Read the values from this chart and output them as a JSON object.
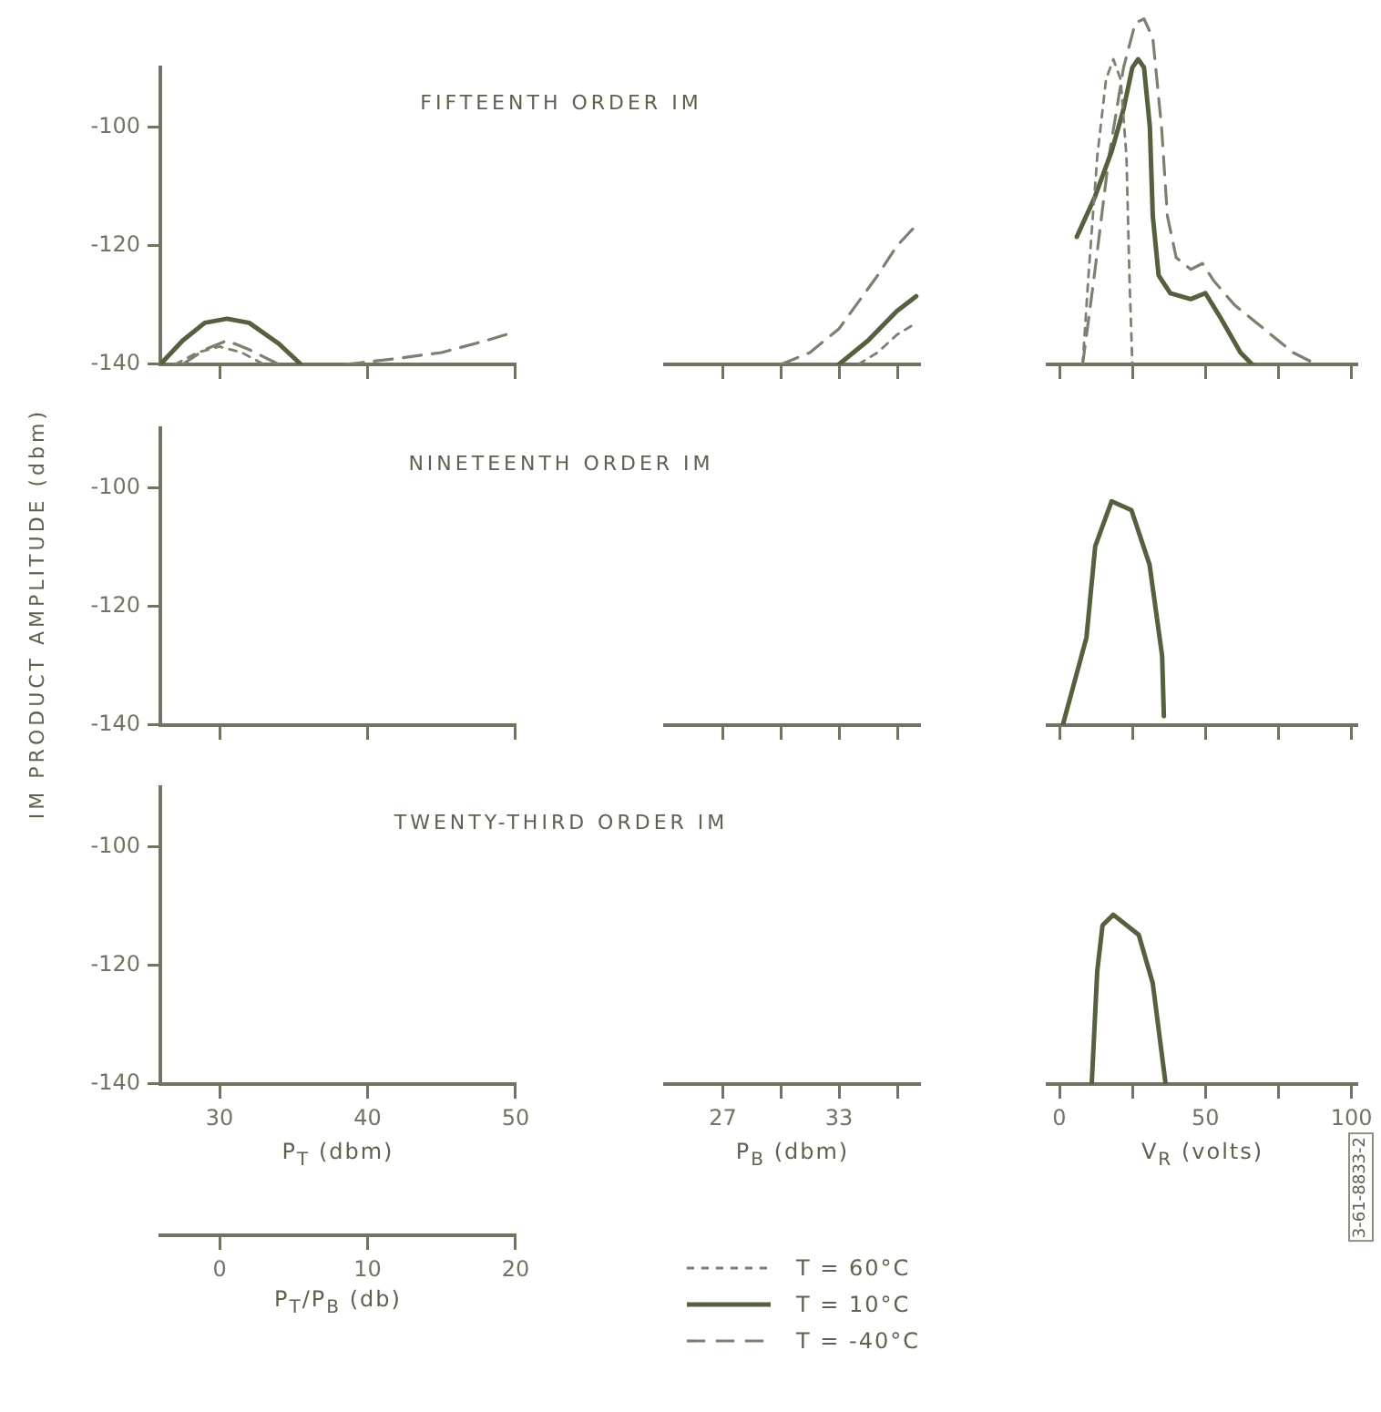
{
  "chart_data": [
    {
      "type": "line",
      "title": "FIFTEENTH ORDER IM",
      "xlim": [
        26,
        50
      ],
      "xticks": [
        30,
        40,
        50
      ],
      "ylim": [
        -140,
        -90
      ],
      "yticks": [
        -140,
        -120,
        -100
      ],
      "tick_labels": "y",
      "marker": "none",
      "legend": "bottom",
      "series": [
        {
          "name": "T = 60°C",
          "color": "#7b806f",
          "line_style": "dotted",
          "x": [
            27,
            28.5,
            30,
            31.5,
            33
          ],
          "values": [
            -140,
            -138,
            -137,
            -138,
            -140
          ]
        },
        {
          "name": "T = 10°C",
          "color": "#55603f",
          "line_style": "solid",
          "x": [
            26,
            27.5,
            29,
            30.5,
            32,
            34,
            35.5
          ],
          "values": [
            -140,
            -136,
            -133,
            -132.3,
            -133,
            -136.5,
            -140
          ]
        },
        {
          "name": "T = -40°C",
          "color": "#7b806f",
          "line_style": "dashed",
          "x": [
            27.5,
            29,
            30.5,
            32,
            34,
            36,
            38.5,
            42,
            45,
            48,
            50
          ],
          "values": [
            -140,
            -137.5,
            -136,
            -137.5,
            -140,
            null,
            -140,
            -139,
            -138,
            -136,
            -134.5
          ]
        }
      ]
    },
    {
      "type": "line",
      "xlim": [
        24,
        37.2
      ],
      "xticks": [
        27,
        {
          "value": 30,
          "label": null
        },
        33,
        {
          "value": 36,
          "label": null
        }
      ],
      "ylim": [
        -140,
        -100
      ],
      "yticks": [
        -140,
        -120,
        -100
      ],
      "tick_labels": false,
      "marker": "none",
      "series": [
        {
          "color": "#7b806f",
          "line_style": "dotted",
          "x": [
            34,
            35,
            36,
            37
          ],
          "values": [
            -140,
            -138,
            -135,
            -133
          ]
        },
        {
          "color": "#55603f",
          "line_style": "solid",
          "x": [
            33,
            34.5,
            36,
            37
          ],
          "values": [
            -140,
            -136,
            -131,
            -128.5
          ]
        },
        {
          "color": "#7b806f",
          "line_style": "dashed",
          "x": [
            30,
            31.5,
            33,
            35,
            36,
            37
          ],
          "values": [
            -140,
            -138,
            -134,
            -125,
            -120,
            -116.5
          ]
        }
      ]
    },
    {
      "type": "line",
      "xlim": [
        -4,
        102
      ],
      "xticks": [
        0,
        {
          "value": 25,
          "label": null
        },
        50,
        {
          "value": 75,
          "label": null
        },
        100
      ],
      "yticks": [
        -140,
        -120,
        -100
      ],
      "tick_labels": false,
      "marker": "none",
      "series": [
        {
          "color": "#7b806f",
          "line_style": "dotted",
          "x": [
            8,
            10,
            13,
            16,
            18.5,
            21,
            23,
            24,
            25
          ],
          "values": [
            -140,
            -125,
            -105,
            -92,
            -88.6,
            -92,
            -105,
            -125,
            -140
          ]
        },
        {
          "color": "#55603f",
          "line_style": "solid",
          "x": [
            6,
            12,
            18,
            22,
            25,
            27,
            29,
            31,
            32,
            34,
            38,
            45,
            50,
            55,
            62,
            66
          ],
          "values": [
            -118.5,
            -112,
            -104,
            -97,
            -90,
            -88.6,
            -90,
            -100,
            -115,
            -125,
            -128,
            -129,
            -128,
            -132,
            -138,
            -140
          ]
        },
        {
          "color": "#7b806f",
          "line_style": "dashed",
          "x": [
            8,
            12,
            17,
            22,
            26,
            29,
            32,
            35,
            37,
            40,
            45,
            49,
            53,
            60,
            70,
            80,
            88
          ],
          "values": [
            -140,
            -125,
            -105,
            -90,
            -82.5,
            -81.8,
            -85,
            -100,
            -115,
            -122,
            -124,
            -123,
            -126,
            -130,
            -134,
            -138,
            -140
          ]
        }
      ]
    },
    {
      "type": "line",
      "title": "NINETEENTH ORDER IM",
      "ylabel": "IM PRODUCT AMPLITUDE (dbm)",
      "xlim": [
        26,
        50
      ],
      "xticks": [
        30,
        40,
        50
      ],
      "ylim": [
        -140,
        -90
      ],
      "yticks": [
        -140,
        -120,
        -100
      ],
      "tick_labels": "y"
    },
    {
      "type": "line",
      "xlim": [
        24,
        37.2
      ],
      "xticks": [
        27,
        {
          "value": 30,
          "label": null
        },
        33,
        {
          "value": 36,
          "label": null
        }
      ],
      "ylim": [
        -140,
        -100
      ],
      "yticks": [
        -140,
        -120,
        -100
      ],
      "tick_labels": false
    },
    {
      "type": "line",
      "xlim": [
        -4,
        102
      ],
      "xticks": [
        0,
        {
          "value": 25,
          "label": null
        },
        50,
        {
          "value": 75,
          "label": null
        },
        100
      ],
      "ylim": [
        -140,
        -100
      ],
      "yticks": [
        -140,
        -120,
        -100
      ],
      "tick_labels": false,
      "marker": "none",
      "series": [
        {
          "color": "#55603f",
          "line_style": "solid",
          "x": [
            1.2,
            9.3,
            12.3,
            17.9,
            24.7,
            30.9,
            35.2,
            35.8
          ],
          "values": [
            -140,
            -125.2,
            -109.8,
            -102.2,
            -103.7,
            -112.9,
            -128.3,
            -138.5
          ]
        }
      ]
    },
    {
      "type": "line",
      "title": "TWENTY-THIRD ORDER IM",
      "xlim": [
        26,
        50
      ],
      "xticks": [
        30,
        40,
        50
      ],
      "ylim": [
        -140,
        -90
      ],
      "yticks": [
        -140,
        -120,
        -100
      ],
      "xlabel": "P$_{T}$ (dbm)",
      "x2lim": [
        -4,
        20
      ],
      "x2ticks": [
        0,
        10,
        20
      ],
      "x2label": "P$_{T}$/P$_{B}$ (db)"
    },
    {
      "type": "line",
      "xlim": [
        24,
        37.2
      ],
      "xticks": [
        27,
        {
          "value": 30,
          "label": null
        },
        33,
        {
          "value": 36,
          "label": null
        }
      ],
      "ylim": [
        -140,
        -100
      ],
      "yticks": [
        -140,
        -120,
        -100
      ],
      "tick_labels": "x",
      "xlabel": "P$_{B}$ (dbm)"
    },
    {
      "type": "line",
      "xlim": [
        -4,
        102
      ],
      "xticks": [
        0,
        {
          "value": 25,
          "label": null
        },
        50,
        {
          "value": 75,
          "label": null
        },
        100
      ],
      "ylim": [
        -140,
        -100
      ],
      "yticks": [
        -140,
        -120,
        -100
      ],
      "tick_labels": "x",
      "xlabel": "V$_{R}$ (volts)",
      "marker": "none",
      "annotations": [
        "3-61-8833-2"
      ],
      "series": [
        {
          "color": "#55603f",
          "line_style": "solid",
          "x": [
            11.1,
            13,
            14.8,
            18.5,
            27.2,
            32,
            36.4
          ],
          "values": [
            -140,
            -120.9,
            -113.2,
            -111.4,
            -114.8,
            -123,
            -140
          ]
        }
      ]
    }
  ]
}
